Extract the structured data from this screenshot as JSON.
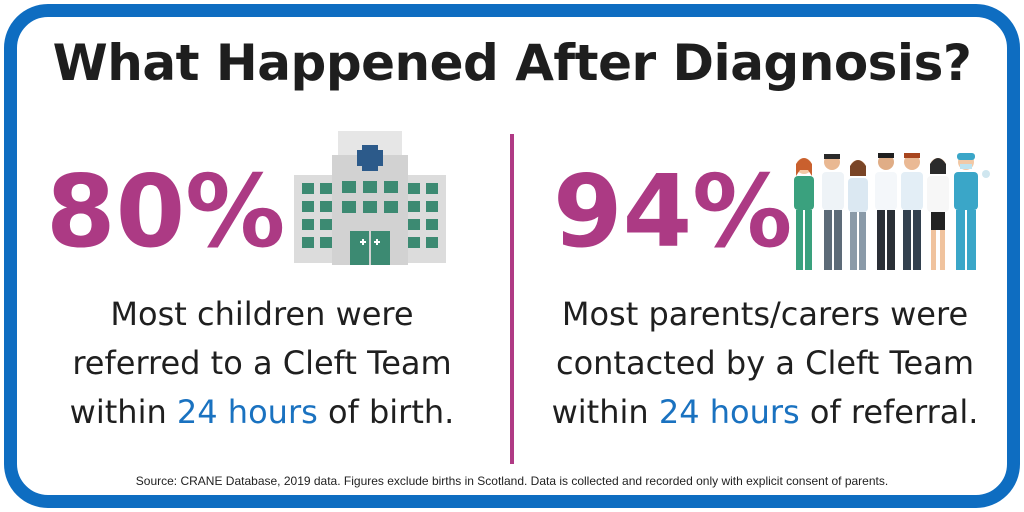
{
  "title": "What Happened After Diagnosis?",
  "left": {
    "percent": "80%",
    "line1": "Most children were",
    "line2": "referred to a Cleft Team",
    "line3_before": "within ",
    "line3_highlight": "24 hours",
    "line3_after": " of birth.",
    "icon": "hospital-icon"
  },
  "right": {
    "percent": "94%",
    "line1": "Most parents/carers were",
    "line2": "contacted by a Cleft Team",
    "line3_before": "within ",
    "line3_highlight": "24 hours",
    "line3_after": " of referral.",
    "icon": "medical-team-icon"
  },
  "source": "Source: CRANE Database, 2019 data. Figures exclude births in Scotland. Data is collected and recorded only with explicit consent of parents.",
  "colors": {
    "border": "#0e6dc1",
    "percent": "#ac3a84",
    "highlight": "#1a72c0",
    "divider": "#b03a85"
  }
}
